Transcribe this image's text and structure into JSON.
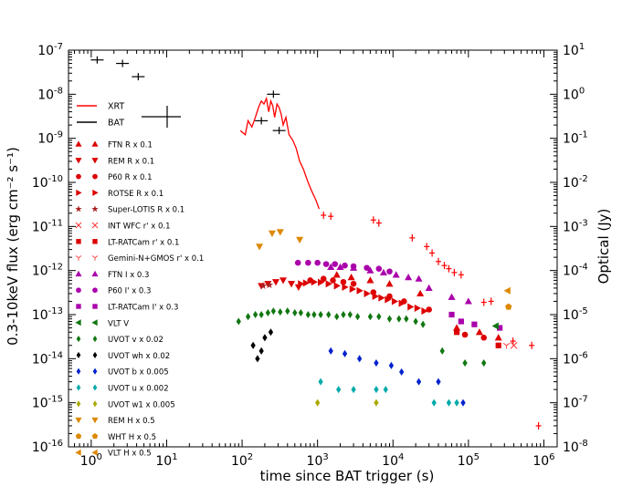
{
  "chart_data": {
    "type": "scatter",
    "xlabel": "time since BAT trigger (s)",
    "ylabel_left": "0.3-10keV flux (erg cm⁻² s⁻¹)",
    "ylabel_right": "Optical (Jy)",
    "x_scale": "log",
    "y_scale": "log",
    "xlim": [
      0.5,
      1500000
    ],
    "ylim_left": [
      1e-16,
      1e-07
    ],
    "ylim_right": [
      1e-08,
      10
    ],
    "x_ticks": [
      {
        "value": 1,
        "base": "10",
        "exp": "0"
      },
      {
        "value": 10,
        "base": "10",
        "exp": "1"
      },
      {
        "value": 100,
        "base": "10",
        "exp": "2"
      },
      {
        "value": 1000,
        "base": "10",
        "exp": "3"
      },
      {
        "value": 10000,
        "base": "10",
        "exp": "4"
      },
      {
        "value": 100000,
        "base": "10",
        "exp": "5"
      },
      {
        "value": 1000000,
        "base": "10",
        "exp": "6"
      }
    ],
    "y_ticks_left": [
      {
        "value": 1e-07,
        "base": "10",
        "exp": "-7"
      },
      {
        "value": 1e-08,
        "base": "10",
        "exp": "-8"
      },
      {
        "value": 1e-09,
        "base": "10",
        "exp": "-9"
      },
      {
        "value": 1e-10,
        "base": "10",
        "exp": "-10"
      },
      {
        "value": 1e-11,
        "base": "10",
        "exp": "-11"
      },
      {
        "value": 1e-12,
        "base": "10",
        "exp": "-12"
      },
      {
        "value": 1e-13,
        "base": "10",
        "exp": "-13"
      },
      {
        "value": 1e-14,
        "base": "10",
        "exp": "-14"
      },
      {
        "value": 1e-15,
        "base": "10",
        "exp": "-15"
      },
      {
        "value": 1e-16,
        "base": "10",
        "exp": "-16"
      }
    ],
    "y_ticks_right": [
      {
        "value": 10,
        "base": "10",
        "exp": "1"
      },
      {
        "value": 1,
        "base": "10",
        "exp": "0"
      },
      {
        "value": 0.1,
        "base": "10",
        "exp": "-1"
      },
      {
        "value": 0.01,
        "base": "10",
        "exp": "-2"
      },
      {
        "value": 0.001,
        "base": "10",
        "exp": "-3"
      },
      {
        "value": 0.0001,
        "base": "10",
        "exp": "-4"
      },
      {
        "value": 1e-05,
        "base": "10",
        "exp": "-5"
      },
      {
        "value": 1e-06,
        "base": "10",
        "exp": "-6"
      },
      {
        "value": 1e-07,
        "base": "10",
        "exp": "-7"
      },
      {
        "value": 1e-08,
        "base": "10",
        "exp": "-8"
      }
    ],
    "legend_position": "upper-left",
    "series": [
      {
        "name": "XRT",
        "kind": "line",
        "color": "#ff0000",
        "axis": "left",
        "points": [
          [
            95,
            1.5e-09
          ],
          [
            110,
            1.2e-09
          ],
          [
            120,
            2.5e-09
          ],
          [
            135,
            1.8e-09
          ],
          [
            150,
            3e-09
          ],
          [
            165,
            5e-09
          ],
          [
            180,
            7e-09
          ],
          [
            195,
            6e-09
          ],
          [
            210,
            8e-09
          ],
          [
            225,
            4e-09
          ],
          [
            240,
            7e-09
          ],
          [
            255,
            5.5e-09
          ],
          [
            270,
            3e-09
          ],
          [
            290,
            6e-09
          ],
          [
            310,
            5e-09
          ],
          [
            330,
            3.5e-09
          ],
          [
            350,
            2e-09
          ],
          [
            380,
            3e-09
          ],
          [
            420,
            1.2e-09
          ],
          [
            470,
            9e-10
          ],
          [
            520,
            6e-10
          ],
          [
            580,
            3e-10
          ],
          [
            650,
            2e-10
          ],
          [
            750,
            1e-10
          ],
          [
            850,
            6e-11
          ],
          [
            950,
            4e-11
          ],
          [
            1050,
            2.5e-11
          ]
        ]
      },
      {
        "name": "XRT",
        "kind": "errorbar",
        "color": "#ff0000",
        "axis": "left",
        "points": [
          [
            1200,
            1.8e-11
          ],
          [
            1500,
            1.7e-11
          ],
          [
            5500,
            1.4e-11
          ],
          [
            6500,
            1.2e-11
          ],
          [
            18000,
            5.5e-12
          ],
          [
            28000,
            3.5e-12
          ],
          [
            33000,
            2.5e-12
          ],
          [
            40000,
            1.6e-12
          ],
          [
            48000,
            1.3e-12
          ],
          [
            55000,
            1.1e-12
          ],
          [
            65000,
            9e-13
          ],
          [
            80000,
            8e-13
          ],
          [
            160000,
            1.9e-13
          ],
          [
            200000,
            2e-13
          ],
          [
            390000,
            2.5e-14
          ],
          [
            690000,
            2e-14
          ],
          [
            850000,
            3e-16
          ]
        ]
      },
      {
        "name": "BAT",
        "kind": "errorbar",
        "color": "#000000",
        "axis": "left",
        "points": [
          [
            1.2,
            6e-08
          ],
          [
            2.6,
            5e-08
          ],
          [
            4.2,
            2.5e-08
          ],
          [
            180,
            2.5e-09
          ],
          [
            260,
            1e-08
          ],
          [
            310,
            1.5e-09
          ]
        ]
      },
      {
        "name": "FTN R x 0.1",
        "marker": "triangle-up",
        "color": "#dd0000",
        "axis": "right",
        "points": [
          [
            1800,
            8e-05
          ],
          [
            2800,
            7e-05
          ],
          [
            5000,
            6e-05
          ],
          [
            9000,
            5e-05
          ],
          [
            23000,
            3e-05
          ],
          [
            70000,
            5e-06
          ],
          [
            140000,
            4e-06
          ],
          [
            250000,
            3e-06
          ]
        ]
      },
      {
        "name": "REM R x 0.1",
        "marker": "triangle-down",
        "color": "#dd0000",
        "axis": "right",
        "points": [
          [
            180,
            4.5e-05
          ],
          [
            220,
            5e-05
          ],
          [
            280,
            5.5e-05
          ],
          [
            350,
            6e-05
          ],
          [
            450,
            5e-05
          ],
          [
            560,
            4.2e-05
          ]
        ]
      },
      {
        "name": "P60 R x 0.1",
        "marker": "circle",
        "color": "#dd0000",
        "axis": "right",
        "points": [
          [
            800,
            6e-05
          ],
          [
            1200,
            6.5e-05
          ],
          [
            1600,
            6e-05
          ],
          [
            2200,
            5.5e-05
          ],
          [
            3000,
            5e-05
          ],
          [
            5500,
            3.2e-05
          ],
          [
            9000,
            2.6e-05
          ],
          [
            14000,
            2e-05
          ],
          [
            30000,
            1.3e-05
          ],
          [
            90000,
            3.5e-06
          ],
          [
            160000,
            3e-06
          ]
        ]
      },
      {
        "name": "ROTSE R x 0.1",
        "marker": "triangle-right",
        "color": "#dd0000",
        "axis": "right",
        "points": [
          [
            600,
            5e-05
          ],
          [
            700,
            5.2e-05
          ],
          [
            900,
            5.5e-05
          ],
          [
            1100,
            5.4e-05
          ],
          [
            1400,
            5e-05
          ],
          [
            1800,
            4.5e-05
          ],
          [
            2300,
            4.2e-05
          ],
          [
            2900,
            3.8e-05
          ],
          [
            3600,
            3.5e-05
          ],
          [
            4500,
            3e-05
          ],
          [
            5800,
            2.6e-05
          ],
          [
            7000,
            2.4e-05
          ],
          [
            8500,
            2.2e-05
          ],
          [
            10500,
            2e-05
          ],
          [
            13000,
            1.8e-05
          ],
          [
            17000,
            1.5e-05
          ],
          [
            21000,
            1.4e-05
          ],
          [
            26000,
            1.2e-05
          ]
        ]
      },
      {
        "name": "Super-LOTIS R x 0.1",
        "marker": "star",
        "color": "#aa2222",
        "axis": "right",
        "points": [
          [
            190,
            4.5e-05
          ],
          [
            230,
            4.7e-05
          ]
        ]
      },
      {
        "name": "INT WFC r' x 0.1",
        "marker": "x",
        "color": "#ff3333",
        "axis": "right",
        "points": [
          [
            400000,
            2e-06
          ]
        ]
      },
      {
        "name": "LT-RATCam r' x 0.1",
        "marker": "square",
        "color": "#dd0000",
        "axis": "right",
        "points": [
          [
            70000,
            4e-06
          ],
          [
            250000,
            2e-06
          ]
        ]
      },
      {
        "name": "Gemini-N+GMOS r' x 0.1",
        "marker": "y",
        "color": "#ff4444",
        "axis": "right",
        "points": [
          [
            320000,
            2e-06
          ]
        ]
      },
      {
        "name": "FTN I x 0.3",
        "marker": "triangle-up",
        "color": "#aa00aa",
        "axis": "right",
        "points": [
          [
            1500,
            0.00012
          ],
          [
            2000,
            0.00012
          ],
          [
            3000,
            0.000115
          ],
          [
            5000,
            0.0001
          ],
          [
            7500,
            9e-05
          ],
          [
            11000,
            8e-05
          ],
          [
            16000,
            7e-05
          ],
          [
            22000,
            6.5e-05
          ],
          [
            30000,
            4e-05
          ],
          [
            60000,
            2.5e-05
          ],
          [
            100000,
            2e-05
          ]
        ]
      },
      {
        "name": "P60 I' x 0.3",
        "marker": "circle",
        "color": "#aa00aa",
        "axis": "right",
        "points": [
          [
            550,
            0.00015
          ],
          [
            750,
            0.00015
          ],
          [
            1000,
            0.00015
          ],
          [
            1300,
            0.00014
          ],
          [
            1700,
            0.00014
          ],
          [
            2300,
            0.00013
          ],
          [
            3000,
            0.000125
          ],
          [
            4500,
            0.000115
          ],
          [
            6500,
            0.00011
          ],
          [
            9000,
            9.5e-05
          ]
        ]
      },
      {
        "name": "LT-RATCam I' x 0.3",
        "marker": "square",
        "color": "#aa00aa",
        "axis": "right",
        "points": [
          [
            60000,
            1e-05
          ],
          [
            80000,
            7e-06
          ],
          [
            120000,
            6e-06
          ],
          [
            260000,
            5e-06
          ]
        ]
      },
      {
        "name": "VLT V",
        "marker": "triangle-left",
        "color": "#117711",
        "axis": "right",
        "points": [
          [
            230000,
            5.5e-06
          ]
        ]
      },
      {
        "name": "UVOT v x 0.02",
        "marker": "diamond",
        "color": "#117711",
        "axis": "right",
        "points": [
          [
            90,
            7e-06
          ],
          [
            120,
            9e-06
          ],
          [
            150,
            1e-05
          ],
          [
            180,
            1e-05
          ],
          [
            220,
            1.1e-05
          ],
          [
            260,
            1.2e-05
          ],
          [
            320,
            1.15e-05
          ],
          [
            400,
            1.2e-05
          ],
          [
            500,
            1.1e-05
          ],
          [
            600,
            1.1e-05
          ],
          [
            750,
            1e-05
          ],
          [
            900,
            1e-05
          ],
          [
            1100,
            1e-05
          ],
          [
            1400,
            1e-05
          ],
          [
            1800,
            9e-06
          ],
          [
            2200,
            1e-05
          ],
          [
            2700,
            1e-05
          ],
          [
            3400,
            9e-06
          ],
          [
            5000,
            9e-06
          ],
          [
            6500,
            9e-06
          ],
          [
            9000,
            8e-06
          ],
          [
            12000,
            8e-06
          ],
          [
            15000,
            8e-06
          ],
          [
            20000,
            7e-06
          ],
          [
            25000,
            6e-06
          ],
          [
            45000,
            1.5e-06
          ],
          [
            90000,
            8e-07
          ],
          [
            160000,
            8e-07
          ]
        ]
      },
      {
        "name": "UVOT wh x 0.02",
        "marker": "diamond",
        "color": "#000000",
        "axis": "right",
        "points": [
          [
            140,
            2e-06
          ],
          [
            160,
            1e-06
          ],
          [
            180,
            1.5e-06
          ],
          [
            200,
            3e-06
          ],
          [
            240,
            4e-06
          ]
        ]
      },
      {
        "name": "UVOT b x 0.005",
        "marker": "diamond",
        "color": "#0022cc",
        "axis": "right",
        "points": [
          [
            1500,
            1.5e-06
          ],
          [
            2300,
            1.3e-06
          ],
          [
            3600,
            1e-06
          ],
          [
            6000,
            8e-07
          ],
          [
            9500,
            7e-07
          ],
          [
            13000,
            5e-07
          ],
          [
            22000,
            3e-07
          ],
          [
            40000,
            3e-07
          ],
          [
            85000,
            1e-07
          ]
        ]
      },
      {
        "name": "UVOT u x 0.002",
        "marker": "diamond",
        "color": "#00aaaa",
        "axis": "right",
        "points": [
          [
            1100,
            3e-07
          ],
          [
            1900,
            2e-07
          ],
          [
            3000,
            2e-07
          ],
          [
            6000,
            2e-07
          ],
          [
            8000,
            2e-07
          ],
          [
            35000,
            1e-07
          ],
          [
            55000,
            1e-07
          ],
          [
            70000,
            1e-07
          ]
        ]
      },
      {
        "name": "UVOT w1 x 0.005",
        "marker": "diamond",
        "color": "#aaaa00",
        "axis": "right",
        "points": [
          [
            1000,
            1e-07
          ],
          [
            6000,
            1e-07
          ]
        ]
      },
      {
        "name": "REM H x 0.5",
        "marker": "triangle-down",
        "color": "#dd8800",
        "axis": "right",
        "points": [
          [
            170,
            0.00035
          ],
          [
            250,
            0.0007
          ],
          [
            320,
            0.00075
          ],
          [
            580,
            0.0005
          ]
        ]
      },
      {
        "name": "WHT H x 0.5",
        "marker": "pentagon",
        "color": "#dd8800",
        "axis": "right",
        "points": [
          [
            340000,
            1.5e-05
          ]
        ]
      },
      {
        "name": "VLT H x 0.5",
        "marker": "triangle-left",
        "color": "#dd8800",
        "axis": "right",
        "points": [
          [
            330000,
            3.5e-05
          ]
        ]
      }
    ]
  }
}
